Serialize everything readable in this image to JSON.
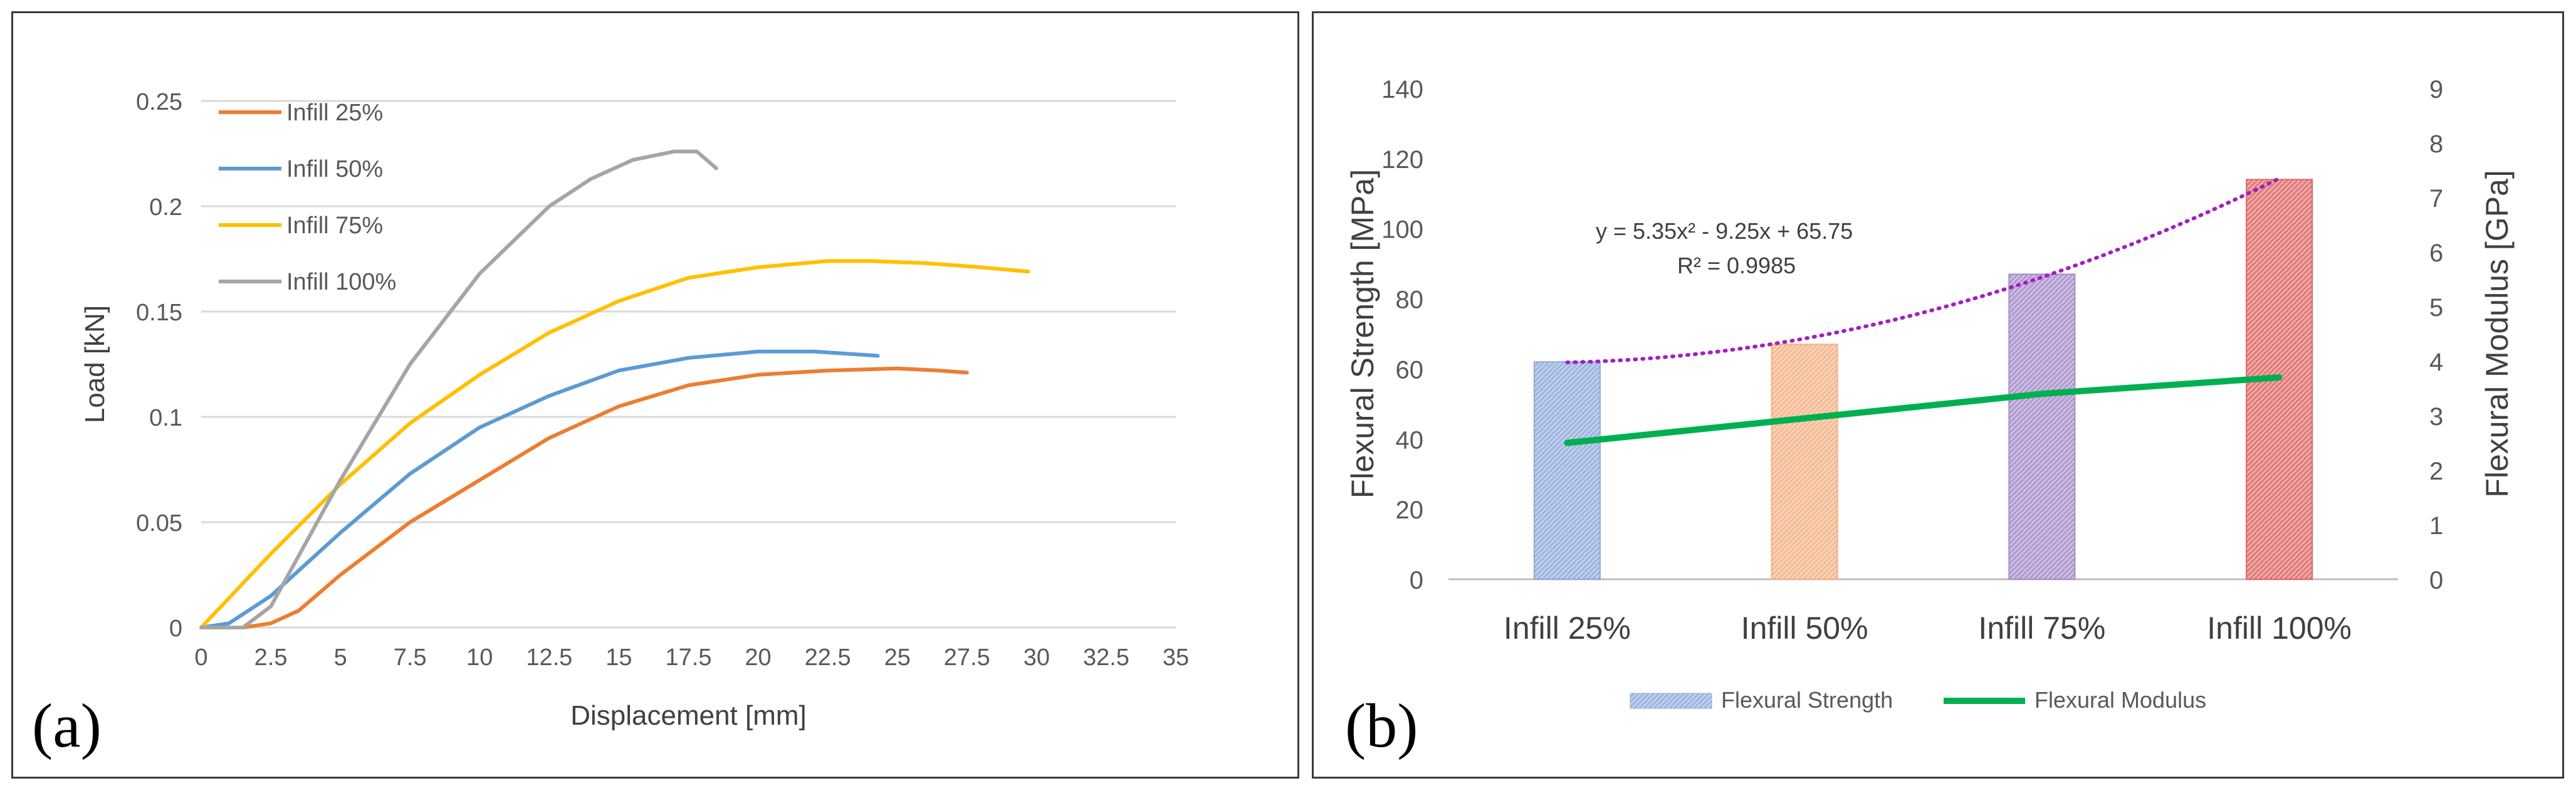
{
  "chart_data": [
    {
      "type": "line",
      "panel_label": "(a)",
      "xlabel": "Displacement [mm]",
      "ylabel": "Load [kN]",
      "xlim": [
        0,
        35
      ],
      "ylim": [
        0,
        0.25
      ],
      "xticks": [
        "0",
        "2.5",
        "5",
        "7.5",
        "10",
        "12.5",
        "15",
        "17.5",
        "20",
        "22.5",
        "25",
        "27.5",
        "30",
        "32.5",
        "35"
      ],
      "yticks": [
        "0",
        "0.05",
        "0.1",
        "0.15",
        "0.2",
        "0.25"
      ],
      "grid": true,
      "legend": "top-left",
      "series": [
        {
          "name": "Infill 25%",
          "color": "#ED7D31",
          "x": [
            0,
            1.5,
            2.5,
            3.5,
            5,
            7.5,
            10,
            12.5,
            15,
            17.5,
            20,
            22.5,
            25,
            26.5,
            27.5
          ],
          "y": [
            0,
            0,
            0.002,
            0.008,
            0.025,
            0.05,
            0.07,
            0.09,
            0.105,
            0.115,
            0.12,
            0.122,
            0.123,
            0.122,
            0.121
          ]
        },
        {
          "name": "Infill 50%",
          "color": "#5B9BD5",
          "x": [
            0,
            1,
            2.5,
            5,
            7.5,
            10,
            12.5,
            15,
            17.5,
            20,
            22,
            24.3
          ],
          "y": [
            0,
            0.002,
            0.015,
            0.045,
            0.073,
            0.095,
            0.11,
            0.122,
            0.128,
            0.131,
            0.131,
            0.129
          ]
        },
        {
          "name": "Infill 75%",
          "color": "#FFC000",
          "x": [
            0,
            2.5,
            5,
            7.5,
            10,
            12.5,
            15,
            17.5,
            20,
            22.5,
            24,
            26,
            28,
            29.7
          ],
          "y": [
            0,
            0.035,
            0.068,
            0.097,
            0.12,
            0.14,
            0.155,
            0.166,
            0.171,
            0.174,
            0.174,
            0.173,
            0.171,
            0.169
          ]
        },
        {
          "name": "Infill 100%",
          "color": "#A5A5A5",
          "x": [
            0,
            1.5,
            2.5,
            5,
            7.5,
            10,
            12.5,
            14,
            15.5,
            17,
            17.8,
            18.5
          ],
          "y": [
            0,
            0,
            0.01,
            0.07,
            0.125,
            0.168,
            0.2,
            0.213,
            0.222,
            0.226,
            0.226,
            0.218
          ]
        }
      ]
    },
    {
      "type": "bar",
      "panel_label": "(b)",
      "categories": [
        "Infill 25%",
        "Infill 50%",
        "Infill 75%",
        "Infill 100%"
      ],
      "ylabel": "Flexural Strength  [MPa]",
      "y2label": "Flexural Modulus [GPa]",
      "ylim": [
        0,
        140
      ],
      "y2lim": [
        0,
        9
      ],
      "yticks": [
        "0",
        "20",
        "40",
        "60",
        "80",
        "100",
        "120",
        "140"
      ],
      "y2ticks": [
        "0",
        "1",
        "2",
        "3",
        "4",
        "5",
        "6",
        "7",
        "8",
        "9"
      ],
      "legend": "bottom",
      "series": [
        {
          "name": "Flexural Strength",
          "axis": "left",
          "kind": "bar",
          "values": [
            62,
            67,
            87,
            114
          ],
          "colors": [
            "#8FAADC",
            "#F4B183",
            "#A68BC9",
            "#E06666"
          ]
        },
        {
          "name": "Flexural Modulus",
          "axis": "right",
          "kind": "line",
          "color": "#00B050",
          "values": [
            2.5,
            2.95,
            3.4,
            3.7
          ]
        }
      ],
      "trendline": {
        "on": "Flexural Strength",
        "color": "#A020C0",
        "coefficients": [
          5.35,
          -9.25,
          65.75
        ],
        "equation": "y = 5.35x² - 9.25x + 65.75",
        "r_squared": "R² = 0.9985"
      }
    }
  ]
}
